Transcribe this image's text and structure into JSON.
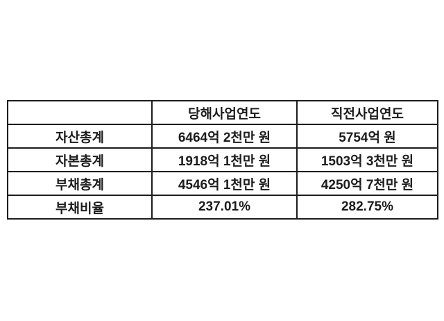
{
  "chart_data": {
    "type": "table",
    "columns": [
      "",
      "당해사업연도",
      "직전사업연도"
    ],
    "rows": [
      [
        "자산총계",
        "6464억 2천만 원",
        "5754억 원"
      ],
      [
        "자본총계",
        "1918억 1천만 원",
        "1503억 3천만 원"
      ],
      [
        "부채총계",
        "4546억 1천만 원",
        "4250억 7천만 원"
      ],
      [
        "부채비율",
        "237.01%",
        "282.75%"
      ]
    ]
  },
  "colors": {
    "border": "#1c1c1c",
    "text": "#1c1c1c",
    "background": "#ffffff"
  }
}
